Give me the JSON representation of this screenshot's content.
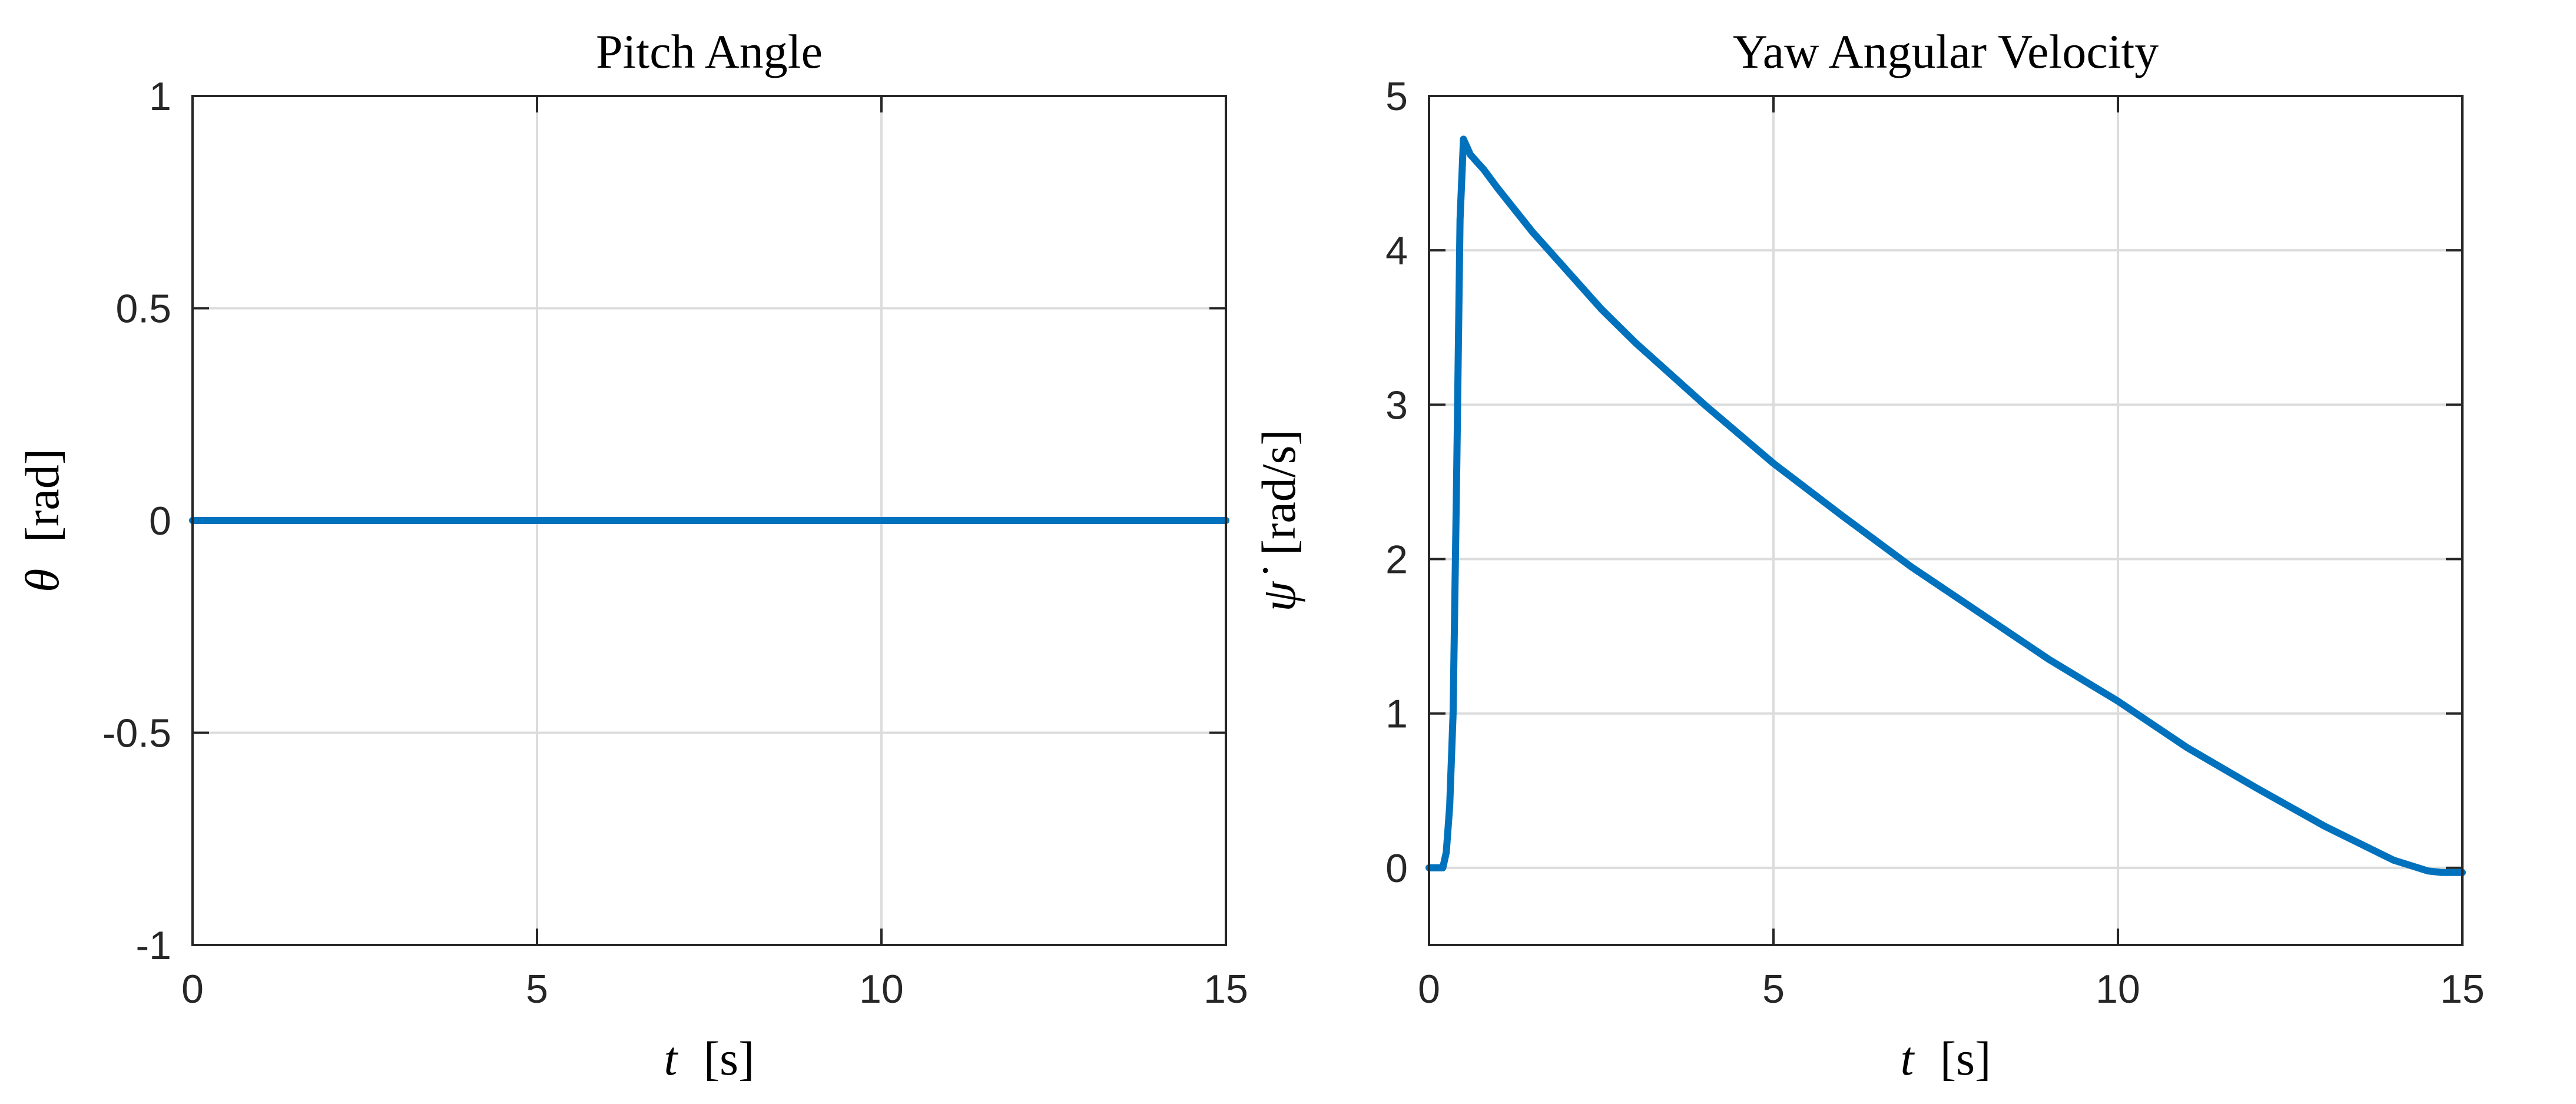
{
  "colors": {
    "series": "#0072BD",
    "axes": "#262626",
    "grid": "#dcdcdc",
    "background": "#ffffff"
  },
  "chart_data": [
    {
      "type": "line",
      "title": "Pitch Angle",
      "xlabel": {
        "var": "t",
        "unit": "[s]"
      },
      "ylabel": {
        "var": "θ",
        "unit": "[rad]"
      },
      "xlim": [
        0,
        15
      ],
      "ylim": [
        -1,
        1
      ],
      "xticks": [
        0,
        5,
        10,
        15
      ],
      "xtick_labels": [
        "0",
        "5",
        "10",
        "15"
      ],
      "yticks": [
        -1,
        -0.5,
        0,
        0.5,
        1
      ],
      "ytick_labels": [
        "-1",
        "-0.5",
        "0",
        "0.5",
        "1"
      ],
      "grid": true,
      "series": [
        {
          "x": [
            0,
            15
          ],
          "y": [
            0,
            0
          ]
        }
      ]
    },
    {
      "type": "line",
      "title": "Yaw Angular Velocity",
      "xlabel": {
        "var": "t",
        "unit": "[s]"
      },
      "ylabel": {
        "var": "ψ̇",
        "unit": "[rad/s]"
      },
      "xlim": [
        0,
        15
      ],
      "ylim": [
        -0.5,
        5
      ],
      "xticks": [
        0,
        5,
        10,
        15
      ],
      "xtick_labels": [
        "0",
        "5",
        "10",
        "15"
      ],
      "yticks": [
        0,
        1,
        2,
        3,
        4,
        5
      ],
      "ytick_labels": [
        "0",
        "1",
        "2",
        "3",
        "4",
        "5"
      ],
      "grid": true,
      "series": [
        {
          "x": [
            0,
            0.2,
            0.25,
            0.3,
            0.35,
            0.4,
            0.45,
            0.5,
            0.6,
            0.8,
            1.0,
            1.5,
            2.0,
            2.5,
            3.0,
            3.5,
            4.0,
            5.0,
            6.0,
            7.0,
            8.0,
            9.0,
            10.0,
            11.0,
            12.0,
            13.0,
            14.0,
            14.5,
            14.7,
            15.0
          ],
          "y": [
            0,
            0,
            0.1,
            0.4,
            1.0,
            2.5,
            4.2,
            4.72,
            4.62,
            4.52,
            4.4,
            4.12,
            3.87,
            3.62,
            3.4,
            3.2,
            3.0,
            2.62,
            2.28,
            1.95,
            1.65,
            1.35,
            1.08,
            0.78,
            0.52,
            0.27,
            0.05,
            -0.02,
            -0.03,
            -0.03
          ]
        }
      ]
    }
  ]
}
